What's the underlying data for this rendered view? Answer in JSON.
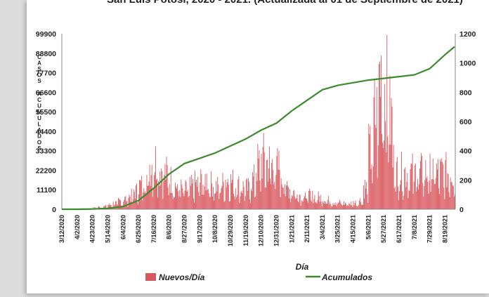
{
  "title": "San Luis Potosí, 2020 - 2021. (Actualizada al 01 de Septiembre de 2021)",
  "chart_data": {
    "type": "bar+line",
    "xlabel": "Día",
    "ylabel_left": "CASOS ACUMULADOS",
    "ylim_left": [
      0,
      99900
    ],
    "ylim_right": [
      0,
      1200
    ],
    "yticks_left": [
      "99900",
      "88800",
      "77700",
      "66600",
      "55500",
      "44400",
      "33300",
      "22200",
      "11100",
      "0"
    ],
    "yticks_right": [
      "1200",
      "1000",
      "800",
      "600",
      "400",
      "200",
      "0"
    ],
    "x_tick_labels": [
      "3/12/2020",
      "4/2/2020",
      "4/23/2020",
      "5/14/2020",
      "6/4/2020",
      "6/25/2020",
      "7/16/2020",
      "8/6/2020",
      "8/27/2020",
      "9/17/2020",
      "10/8/2020",
      "10/29/2020",
      "11/19/2020",
      "12/10/2020",
      "12/31/2020",
      "1/21/2021",
      "2/11/2021",
      "3/4/2021",
      "3/25/2021",
      "4/15/2021",
      "5/6/2021",
      "5/27/2021",
      "6/17/2021",
      "7/8/2021",
      "7/29/2021",
      "8/19/2021"
    ],
    "series": [
      {
        "name": "Nuevos/Día",
        "axis": "right",
        "color": "#d9585e",
        "weekly_approx_daily_values": [
          0,
          0,
          0,
          1,
          2,
          5,
          10,
          15,
          20,
          30,
          40,
          55,
          70,
          90,
          120,
          160,
          220,
          300,
          320,
          280,
          240,
          200,
          160,
          140,
          130,
          150,
          170,
          190,
          200,
          170,
          150,
          170,
          200,
          185,
          160,
          150,
          140,
          200,
          300,
          340,
          310,
          300,
          280,
          200,
          140,
          120,
          100,
          95,
          90,
          85,
          80,
          70,
          60,
          50,
          45,
          40,
          40,
          45,
          60,
          150,
          380,
          620,
          900,
          820,
          600,
          250
        ],
        "detail": "estimated weekly mean of daily new cases read off the bars"
      },
      {
        "name": "Acumulados",
        "axis": "left",
        "color": "#3d8a2e",
        "points": [
          [
            "3/12/2020",
            0
          ],
          [
            "4/2/2020",
            0
          ],
          [
            "4/23/2020",
            100
          ],
          [
            "5/14/2020",
            500
          ],
          [
            "6/4/2020",
            1500
          ],
          [
            "6/25/2020",
            5000
          ],
          [
            "7/16/2020",
            12000
          ],
          [
            "8/6/2020",
            20000
          ],
          [
            "8/27/2020",
            26000
          ],
          [
            "9/17/2020",
            29000
          ],
          [
            "10/8/2020",
            32000
          ],
          [
            "10/29/2020",
            36000
          ],
          [
            "11/19/2020",
            40000
          ],
          [
            "12/10/2020",
            45000
          ],
          [
            "12/31/2020",
            49000
          ],
          [
            "1/21/2021",
            56000
          ],
          [
            "2/11/2021",
            62000
          ],
          [
            "3/4/2021",
            68000
          ],
          [
            "3/25/2021",
            70500
          ],
          [
            "4/15/2021",
            72000
          ],
          [
            "5/6/2021",
            73500
          ],
          [
            "5/27/2021",
            74500
          ],
          [
            "6/17/2021",
            75500
          ],
          [
            "7/8/2021",
            76500
          ],
          [
            "7/29/2021",
            80000
          ],
          [
            "8/19/2021",
            88000
          ],
          [
            "9/1/2021",
            92500
          ]
        ]
      }
    ],
    "legend": [
      "Nuevos/Día",
      "Acumulados"
    ],
    "legend_position": "bottom",
    "grid": false
  }
}
